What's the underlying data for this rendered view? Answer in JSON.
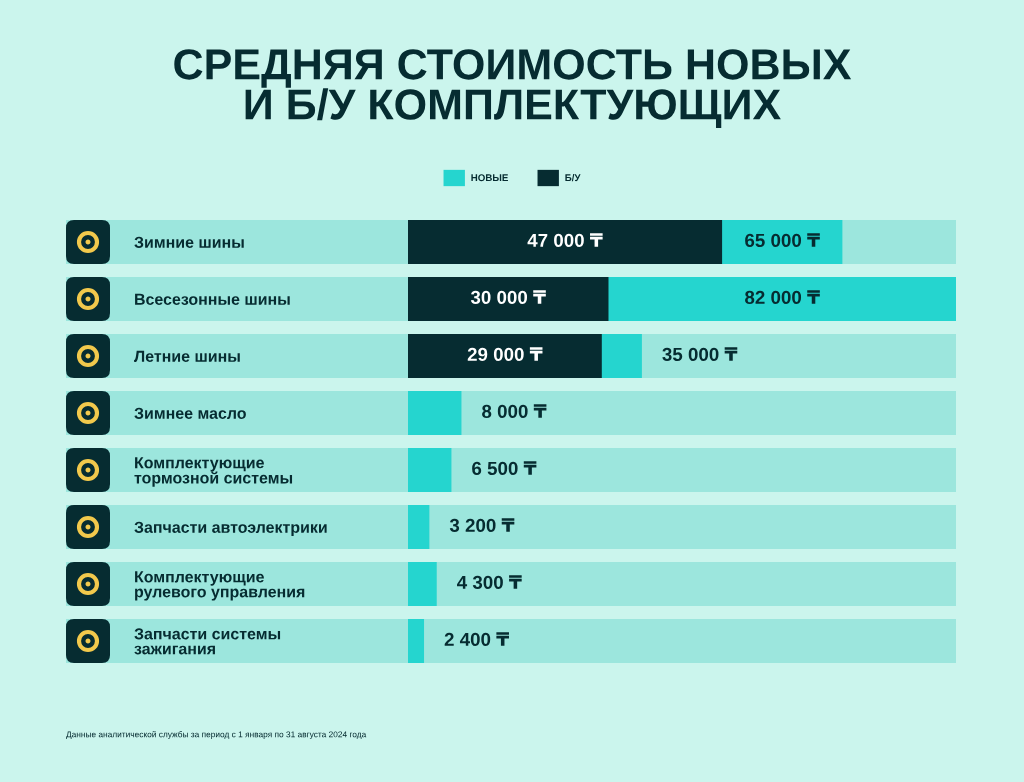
{
  "chart_data": {
    "type": "bar",
    "orientation": "horizontal",
    "title": "СРЕДНЯЯ СТОИМОСТЬ НОВЫХ\nИ Б/У КОМПЛЕКТУЮЩИХ",
    "categories": [
      "Зимние шины",
      "Всесезонные шины",
      "Летние шины",
      "Зимнее масло",
      "Комплектующие\nтормозной системы",
      "Запчасти автоэлектрики",
      "Комплектующие\nрулевого управления",
      "Запчасти системы\nзажигания"
    ],
    "series": [
      {
        "name": "НОВЫЕ",
        "color": "#25d5cf",
        "values": [
          65000,
          82000,
          35000,
          8000,
          6500,
          3200,
          4300,
          2400
        ],
        "value_labels": [
          "65 000 ₸",
          "82 000 ₸",
          "35 000 ₸",
          "8 000 ₸",
          "6 500 ₸",
          "3 200 ₸",
          "4 300 ₸",
          "2 400 ₸"
        ]
      },
      {
        "name": "Б/У",
        "color": "#062c31",
        "values": [
          47000,
          30000,
          29000,
          null,
          null,
          null,
          null,
          null
        ],
        "value_labels": [
          "47 000 ₸",
          "30 000 ₸",
          "29 000 ₸",
          null,
          null,
          null,
          null,
          null
        ]
      }
    ],
    "legend": "top",
    "tick_labels": "y",
    "annotations": [
      "Данные аналитической службы за период с 1 января по 31 августа 2024 года"
    ]
  }
}
